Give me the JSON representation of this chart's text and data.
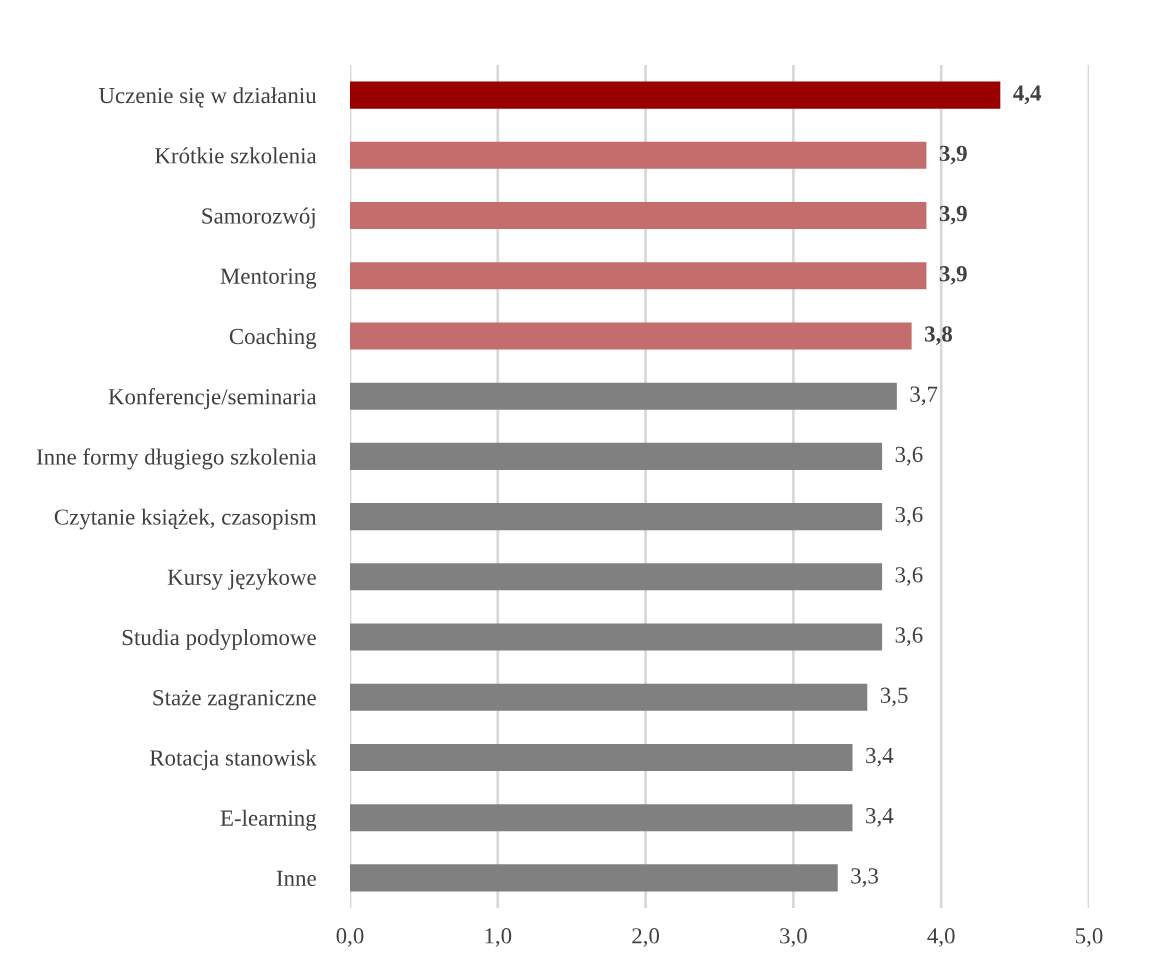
{
  "chart_data": {
    "type": "bar",
    "orientation": "horizontal",
    "categories": [
      "Uczenie się w działaniu",
      "Krótkie szkolenia",
      "Samorozwój",
      "Mentoring",
      "Coaching",
      "Konferencje/seminaria",
      "Inne formy długiego szkolenia",
      "Czytanie książek, czasopism",
      "Kursy językowe",
      "Studia podyplomowe",
      "Staże zagraniczne",
      "Rotacja stanowisk",
      "E-learning",
      "Inne"
    ],
    "values": [
      4.4,
      3.9,
      3.9,
      3.9,
      3.8,
      3.7,
      3.6,
      3.6,
      3.6,
      3.6,
      3.5,
      3.4,
      3.4,
      3.3
    ],
    "value_labels": [
      "4,4",
      "3,9",
      "3,9",
      "3,9",
      "3,8",
      "3,7",
      "3,6",
      "3,6",
      "3,6",
      "3,6",
      "3,5",
      "3,4",
      "3,4",
      "3,3"
    ],
    "colors": [
      "#990000",
      "#c46d6d",
      "#c46d6d",
      "#c46d6d",
      "#c46d6d",
      "#808080",
      "#808080",
      "#808080",
      "#808080",
      "#808080",
      "#808080",
      "#808080",
      "#808080",
      "#808080"
    ],
    "xlim": [
      0,
      5
    ],
    "xticks": [
      {
        "value": 0,
        "label": "0,0"
      },
      {
        "value": 1,
        "label": "1,0"
      },
      {
        "value": 2,
        "label": "2,0"
      },
      {
        "value": 3,
        "label": "3,0"
      },
      {
        "value": 4,
        "label": "4,0"
      },
      {
        "value": 5,
        "label": "5,0"
      }
    ],
    "grid": "x"
  }
}
